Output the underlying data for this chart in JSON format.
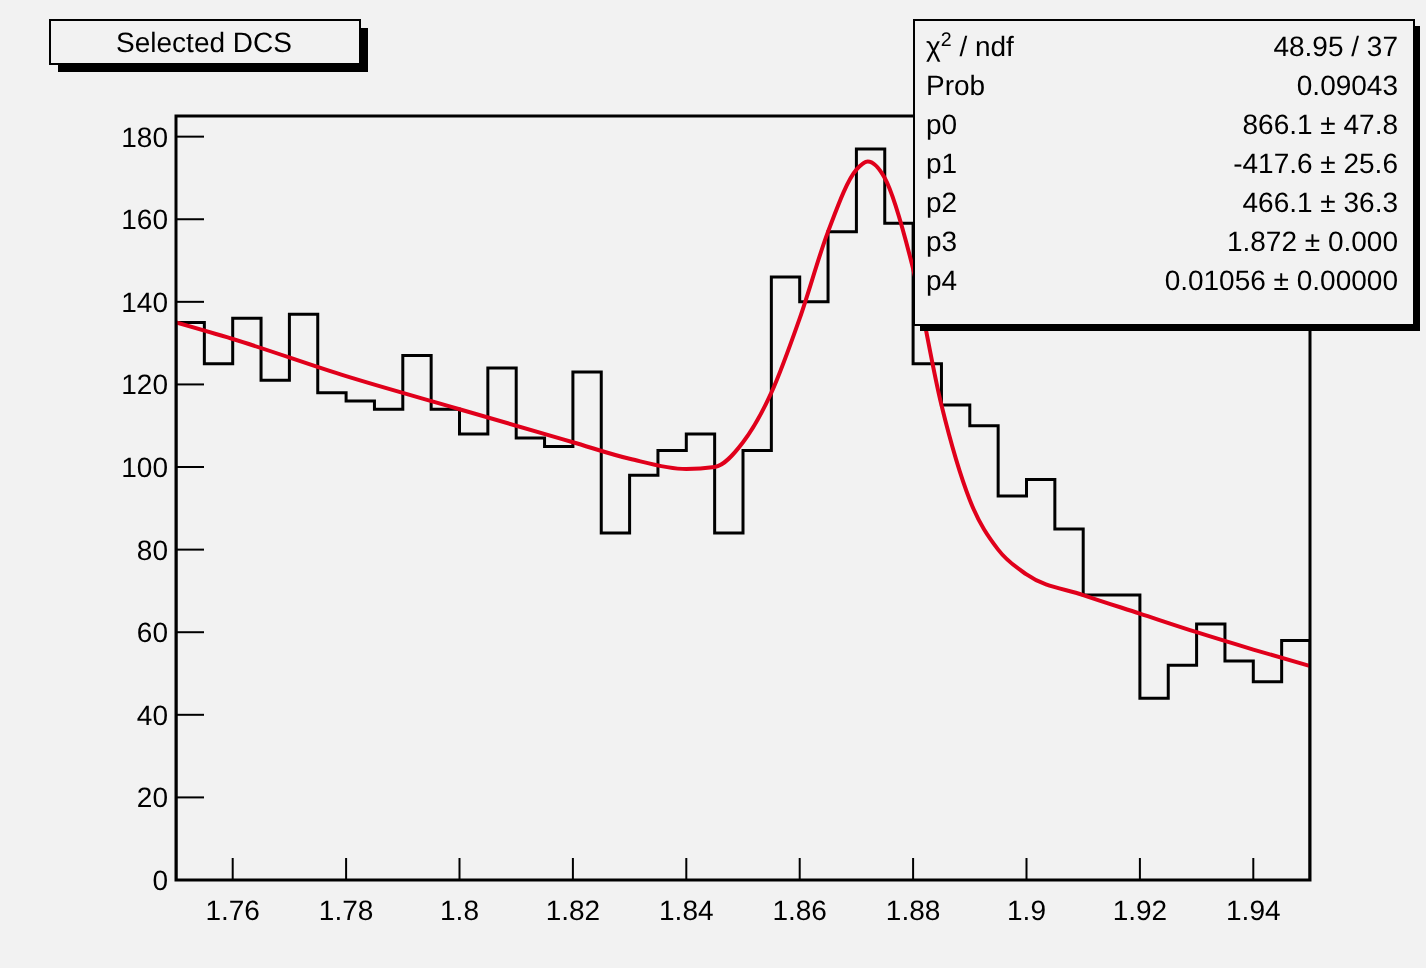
{
  "chart_data": {
    "type": "histogram",
    "title": "Selected DCS",
    "bins": [
      1.75,
      1.755,
      1.76,
      1.765,
      1.77,
      1.775,
      1.78,
      1.785,
      1.79,
      1.795,
      1.8,
      1.805,
      1.81,
      1.815,
      1.82,
      1.825,
      1.83,
      1.835,
      1.84,
      1.845,
      1.85,
      1.855,
      1.86,
      1.865,
      1.87,
      1.875,
      1.88,
      1.885,
      1.89,
      1.895,
      1.9,
      1.905,
      1.91,
      1.915,
      1.92,
      1.925,
      1.93,
      1.935,
      1.94,
      1.945,
      1.95
    ],
    "values": [
      135,
      125,
      136,
      121,
      137,
      118,
      116,
      114,
      127,
      114,
      108,
      124,
      107,
      105,
      123,
      84,
      98,
      104,
      108,
      84,
      104,
      146,
      140,
      157,
      177,
      159,
      125,
      115,
      110,
      93,
      97,
      85,
      69,
      69,
      44,
      52,
      62,
      53,
      48,
      58
    ],
    "color": "#000000",
    "series": [
      {
        "type": "line",
        "color": "#e0001b",
        "x": [
          1.75,
          1.76,
          1.78,
          1.8,
          1.82,
          1.83,
          1.84,
          1.845,
          1.85,
          1.855,
          1.86,
          1.865,
          1.87,
          1.872,
          1.875,
          1.88,
          1.885,
          1.89,
          1.895,
          1.9,
          1.91,
          1.92,
          1.93,
          1.94,
          1.95
        ],
        "values": [
          135,
          131,
          122,
          114,
          106,
          102,
          99.5,
          100,
          106,
          118,
          136,
          157,
          172,
          174,
          170,
          148,
          115,
          92,
          80,
          74,
          69,
          64.5,
          60,
          55.8,
          51.8
        ]
      }
    ],
    "xlim": [
      1.75,
      1.95
    ],
    "xticks": [
      1.76,
      1.78,
      1.8,
      1.82,
      1.84,
      1.86,
      1.88,
      1.9,
      1.92,
      1.94
    ],
    "ylim": [
      0,
      185
    ],
    "yticks": [
      0,
      20,
      40,
      60,
      80,
      100,
      120,
      140,
      160,
      180
    ],
    "grid": false,
    "annotations": [
      "χ$^{2}$ / ndf\t48.95 / 37",
      "Prob\t0.09043",
      "p0\t866.1 ± 47.8",
      "p1\t-417.6 ± 25.6",
      "p2\t466.1 ± 36.3",
      "p3\t1.872 ± 0.000",
      "p4\t0.01056 ± 0.00000"
    ]
  }
}
